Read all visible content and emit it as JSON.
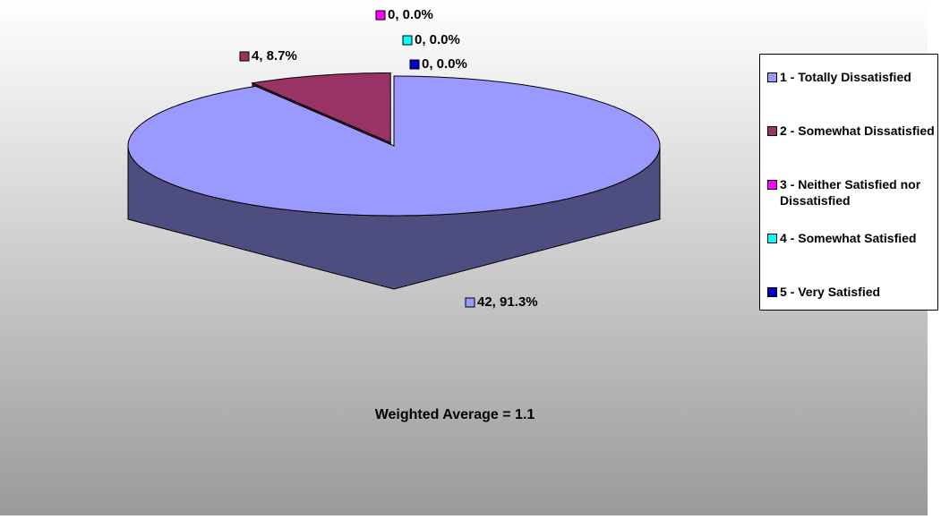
{
  "chart_data": {
    "type": "pie3d",
    "categories": [
      "1 - Totally Dissatisfied",
      "2 - Somewhat Dissatisfied",
      "3 - Neither Satisfied nor Dissatisfied",
      "4 - Somewhat Satisfied",
      "5 - Very Satisfied"
    ],
    "values": [
      42,
      4,
      0,
      0,
      0
    ],
    "value_labels": [
      "42, 91.3%",
      "4, 8.7%",
      "0, 0.0%",
      "0, 0.0%",
      "0, 0.0%"
    ],
    "colors": [
      "#9999ff",
      "#993366",
      "#ff00ff",
      "#00ffff",
      "#0000cc"
    ],
    "annotation": "Weighted Average = 1.1",
    "legend": "right"
  }
}
